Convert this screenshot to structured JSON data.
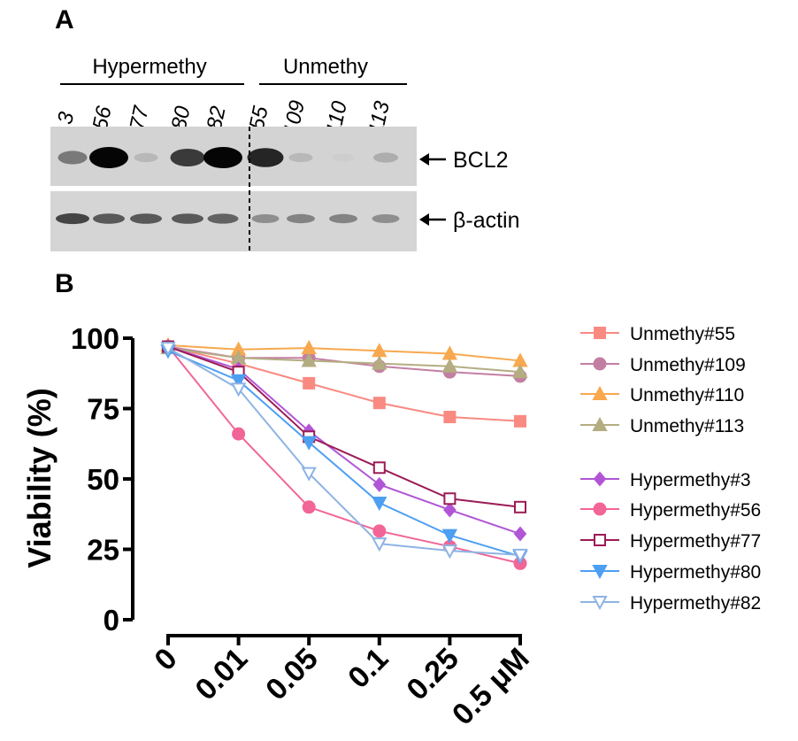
{
  "panel_a": {
    "letter": "A",
    "groups": [
      {
        "label": "Hypermethy",
        "lanes": [
          "3",
          "56",
          "77",
          "80",
          "82"
        ]
      },
      {
        "label": "Unmethy",
        "lanes": [
          "55",
          "109",
          "110",
          "113"
        ]
      }
    ],
    "bands": [
      {
        "label": "BCL2",
        "intensities": [
          0.45,
          1.0,
          0.15,
          0.75,
          1.0,
          0.85,
          0.15,
          0.05,
          0.2
        ]
      },
      {
        "label": "β-actin",
        "intensities": [
          0.7,
          0.6,
          0.6,
          0.6,
          0.55,
          0.35,
          0.4,
          0.4,
          0.35
        ]
      }
    ]
  },
  "panel_b": {
    "letter": "B"
  },
  "chart_data": {
    "type": "line",
    "title": "",
    "ylabel": "Viability (%)",
    "xlabel": "",
    "categories": [
      "0",
      "0.01",
      "0.05",
      "0.1",
      "0.25",
      "0.5 μM"
    ],
    "ylim": [
      0,
      100
    ],
    "yticks": [
      0,
      25,
      50,
      75,
      100
    ],
    "grid": false,
    "legend_position": "right",
    "series": [
      {
        "name": "Unmethy#55",
        "color": "#f88a82",
        "marker": "square",
        "filled": true,
        "values": [
          97,
          91,
          84,
          77,
          72,
          70.5
        ]
      },
      {
        "name": "Unmethy#109",
        "color": "#c37fa3",
        "marker": "circle",
        "filled": true,
        "values": [
          97,
          93,
          93,
          90,
          88,
          86.5
        ]
      },
      {
        "name": "Unmethy#110",
        "color": "#f8a84e",
        "marker": "triangle-up",
        "filled": true,
        "values": [
          97.5,
          96,
          96.5,
          95.5,
          94.5,
          92
        ]
      },
      {
        "name": "Unmethy#113",
        "color": "#b4ad82",
        "marker": "triangle-up",
        "filled": true,
        "values": [
          96.5,
          93,
          92,
          91,
          90,
          88
        ]
      },
      {
        "name": "Hypermethy#3",
        "color": "#b155d6",
        "marker": "diamond",
        "filled": true,
        "values": [
          97,
          89,
          67,
          48,
          39,
          30.5
        ]
      },
      {
        "name": "Hypermethy#56",
        "color": "#f26597",
        "marker": "circle",
        "filled": true,
        "values": [
          97,
          66,
          40,
          31.5,
          26,
          20
        ]
      },
      {
        "name": "Hypermethy#77",
        "color": "#9b1c56",
        "marker": "square",
        "filled": false,
        "values": [
          97,
          88,
          65,
          54,
          43,
          40
        ]
      },
      {
        "name": "Hypermethy#80",
        "color": "#4d9ff2",
        "marker": "triangle-down",
        "filled": true,
        "values": [
          95.5,
          85,
          63,
          41.5,
          30,
          22.5
        ]
      },
      {
        "name": "Hypermethy#82",
        "color": "#8eb4e4",
        "marker": "triangle-down",
        "filled": false,
        "values": [
          96.5,
          82,
          52,
          27,
          24.5,
          23
        ]
      }
    ]
  }
}
